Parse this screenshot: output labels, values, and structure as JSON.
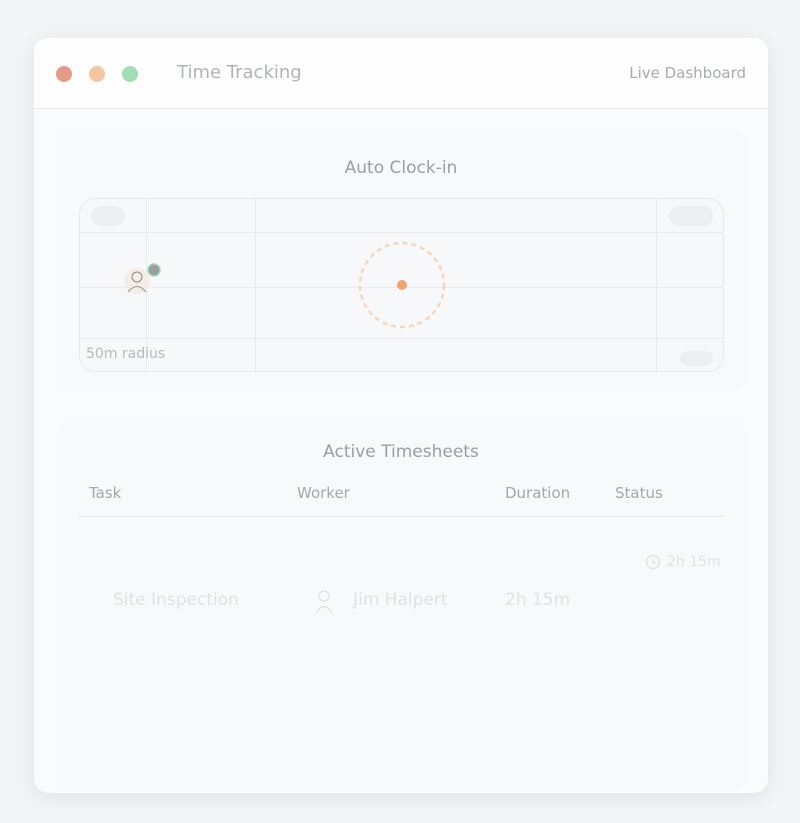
{
  "window": {
    "title": "Time Tracking",
    "right_label": "Live Dashboard",
    "controls": {
      "close": "#e8957a",
      "minimize": "#f3c79a",
      "maximize": "#9ddcaf"
    }
  },
  "map_card": {
    "title": "Auto Clock-in",
    "radius_label": "50m radius",
    "accent": "#f0a46f"
  },
  "timesheets": {
    "title": "Active Timesheets",
    "columns": [
      "Task",
      "Worker",
      "Duration",
      "Status"
    ],
    "rows": [
      {
        "task": "Site Inspection",
        "worker": "Jim Halpert",
        "duration": "2h 15m",
        "status": "2h 15m",
        "status_icon": "clock-icon"
      }
    ]
  }
}
